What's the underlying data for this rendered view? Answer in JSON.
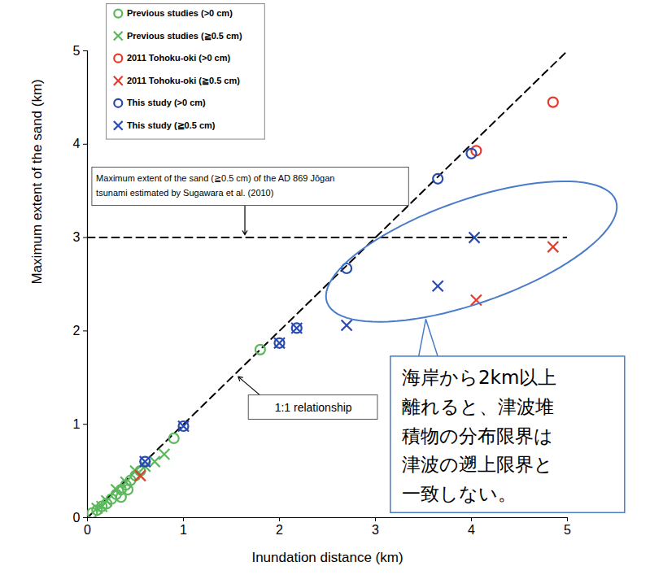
{
  "chart_data": {
    "type": "scatter",
    "x_label": "Inundation distance (km)",
    "y_label": "Maximum extent of the sand (km)",
    "xlim": [
      0,
      5
    ],
    "ylim": [
      0,
      5
    ],
    "xticks": [
      0,
      1,
      2,
      3,
      4,
      5
    ],
    "yticks": [
      0,
      1,
      2,
      3,
      4,
      5
    ],
    "grid": false,
    "legend": "upper left",
    "series": [
      {
        "name": "Previous studies (>0 cm)",
        "color": "#5cb85c",
        "marker": "circle",
        "x": [
          0.05,
          0.1,
          0.15,
          0.2,
          0.25,
          0.3,
          0.35,
          0.35,
          0.4,
          0.42,
          0.45,
          0.5,
          0.55,
          0.9,
          1.8
        ],
        "values": [
          0.05,
          0.08,
          0.12,
          0.15,
          0.2,
          0.25,
          0.3,
          0.22,
          0.35,
          0.3,
          0.4,
          0.45,
          0.5,
          0.85,
          1.8
        ]
      },
      {
        "name": "Previous studies (≧0.5 cm)",
        "color": "#5cb85c",
        "marker": "x",
        "x": [
          0.1,
          0.15,
          0.2,
          0.3,
          0.4,
          0.5,
          0.6,
          0.7,
          0.8
        ],
        "values": [
          0.1,
          0.12,
          0.18,
          0.3,
          0.38,
          0.5,
          0.55,
          0.6,
          0.68
        ]
      },
      {
        "name": "2011 Tohoku-oki (>0 cm)",
        "color": "#e8392b",
        "marker": "circle",
        "x": [
          4.05,
          4.85
        ],
        "values": [
          3.93,
          4.45
        ]
      },
      {
        "name": "2011 Tohoku-oki (≧0.5 cm)",
        "color": "#e8392b",
        "marker": "x",
        "x": [
          0.55,
          4.05,
          4.85
        ],
        "values": [
          0.45,
          2.33,
          2.9
        ]
      },
      {
        "name": "This study (>0 cm)",
        "color": "#2a4ab0",
        "marker": "circle",
        "x": [
          0.6,
          1.0,
          2.0,
          2.18,
          2.7,
          3.65,
          4.0
        ],
        "values": [
          0.6,
          0.98,
          1.87,
          2.03,
          2.67,
          3.63,
          3.9
        ]
      },
      {
        "name": "This study (≧0.5 cm)",
        "color": "#2a4ab0",
        "marker": "x",
        "x": [
          0.6,
          1.0,
          2.0,
          2.18,
          2.7,
          3.65,
          4.03
        ],
        "values": [
          0.6,
          0.98,
          1.87,
          2.03,
          2.06,
          2.48,
          3.0
        ]
      }
    ],
    "lines": [
      {
        "label": "1:1 relationship",
        "x": [
          0,
          5
        ],
        "y": [
          0,
          5
        ],
        "line_style": "dashed"
      },
      {
        "label": "Maximum extent of the sand (≧0.5 cm) of the AD 869 Jōgan\ntsunami estimated by Sugawara et al. (2010)",
        "x": [
          0,
          5
        ],
        "y": [
          3,
          3
        ],
        "line_style": "dashed"
      }
    ],
    "callout": {
      "text": "海岸から2km以上\n離れると、津波堆\n積物の分布限界は\n津波の遡上限界と\n一致しない。",
      "color": "#4a7cc9"
    }
  }
}
